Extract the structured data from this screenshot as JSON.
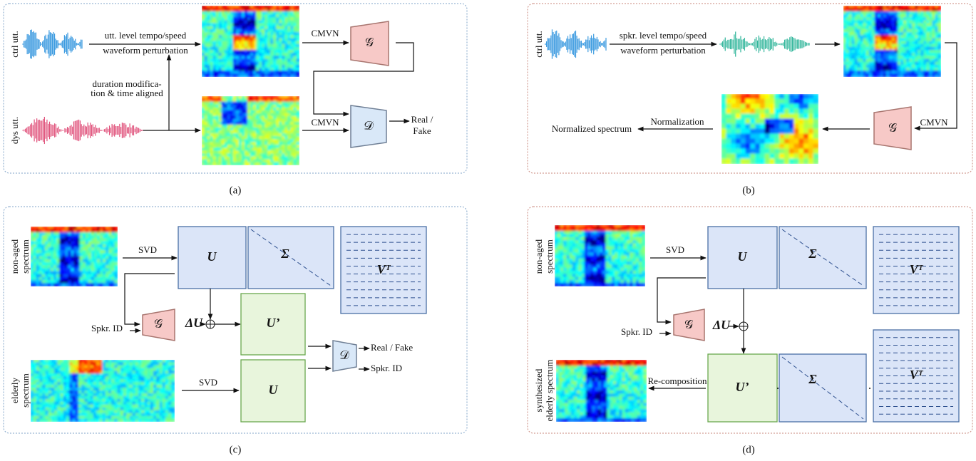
{
  "panel_a": {
    "caption": "(a)",
    "ctrl_label": "ctrl utt.",
    "perturb_line1": "utt. level tempo/speed",
    "perturb_line2": "waveform perturbation",
    "cmvn_top": "CMVN",
    "generator": "𝒢",
    "duration_line1": "duration modifica-",
    "duration_line2": "tion & time aligned",
    "dys_label": "dys utt.",
    "cmvn_bottom": "CMVN",
    "discriminator": "𝒟",
    "output_line1": "Real /",
    "output_line2": "Fake"
  },
  "panel_b": {
    "caption": "(b)",
    "ctrl_label": "ctrl utt.",
    "perturb_line1": "spkr. level tempo/speed",
    "perturb_line2": "waveform perturbation",
    "cmvn": "CMVN",
    "generator": "𝒢",
    "normalization": "Normalization",
    "output": "Normalized spectrum"
  },
  "panel_c": {
    "caption": "(c)",
    "input_line1": "non-aged",
    "input_line2": "spectrum",
    "svd_top": "SVD",
    "u_top": "U",
    "sigma": "Σ",
    "vt": "Vᵀ",
    "speaker_id": "Spkr. ID",
    "generator": "𝒢",
    "delta_u": "ΔU",
    "u_prime": "U’",
    "discriminator": "𝒟",
    "output_real_fake": "Real / Fake",
    "output_speaker_id": "Spkr. ID",
    "elderly_line1": "elderly",
    "elderly_line2": "spectrum",
    "svd_bottom": "SVD",
    "u_bottom": "U"
  },
  "panel_d": {
    "caption": "(d)",
    "input_line1": "non-aged",
    "input_line2": "spectrum",
    "svd": "SVD",
    "u_top": "U",
    "sigma_top": "Σ",
    "vt_top": "Vᵀ",
    "speaker_id": "Spkr. ID",
    "generator": "𝒢",
    "delta_u": "ΔU",
    "u_prime": "U’",
    "sigma_bottom": "Σ",
    "vt_bottom": "Vᵀ",
    "recomposition": "Re-composition",
    "output_line1": "synthesized",
    "output_line2": "elderly spectrum"
  }
}
